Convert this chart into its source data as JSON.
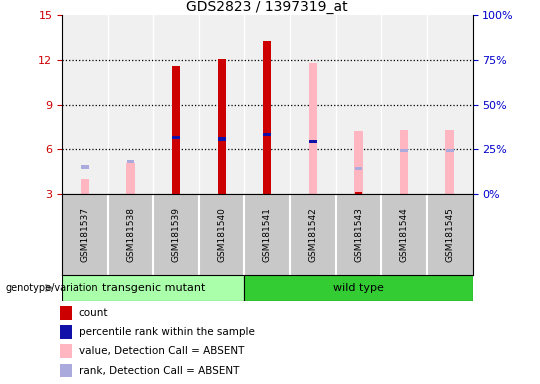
{
  "title": "GDS2823 / 1397319_at",
  "samples": [
    "GSM181537",
    "GSM181538",
    "GSM181539",
    "GSM181540",
    "GSM181541",
    "GSM181542",
    "GSM181543",
    "GSM181544",
    "GSM181545"
  ],
  "groups": [
    "transgenic mutant",
    "transgenic mutant",
    "transgenic mutant",
    "transgenic mutant",
    "wild type",
    "wild type",
    "wild type",
    "wild type",
    "wild type"
  ],
  "ylim": [
    3,
    15
  ],
  "yticks": [
    3,
    6,
    9,
    12,
    15
  ],
  "right_ylabels": [
    "0%",
    "25%",
    "50%",
    "75%",
    "100%"
  ],
  "count_values": [
    null,
    null,
    11.6,
    12.05,
    13.3,
    null,
    3.1,
    null,
    null
  ],
  "rank_values": [
    null,
    null,
    6.8,
    6.7,
    7.0,
    6.5,
    null,
    null,
    null
  ],
  "pink_bar_values": [
    4.0,
    5.1,
    null,
    null,
    null,
    11.8,
    7.2,
    7.3,
    7.3
  ],
  "blue_sq_values": [
    4.8,
    5.2,
    null,
    null,
    null,
    6.5,
    4.7,
    5.9,
    5.9
  ],
  "count_color": "#CC0000",
  "rank_color": "#1111AA",
  "pink_color": "#FFB6C1",
  "blue_color": "#AAAADD",
  "plot_bg_color": "#F0F0F0",
  "sample_bg_color": "#C8C8C8",
  "transgenic_color": "#AAFFAA",
  "wildtype_color": "#33CC33",
  "legend_items": [
    {
      "color": "#CC0000",
      "label": "count"
    },
    {
      "color": "#1111AA",
      "label": "percentile rank within the sample"
    },
    {
      "color": "#FFB6C1",
      "label": "value, Detection Call = ABSENT"
    },
    {
      "color": "#AAAADD",
      "label": "rank, Detection Call = ABSENT"
    }
  ]
}
